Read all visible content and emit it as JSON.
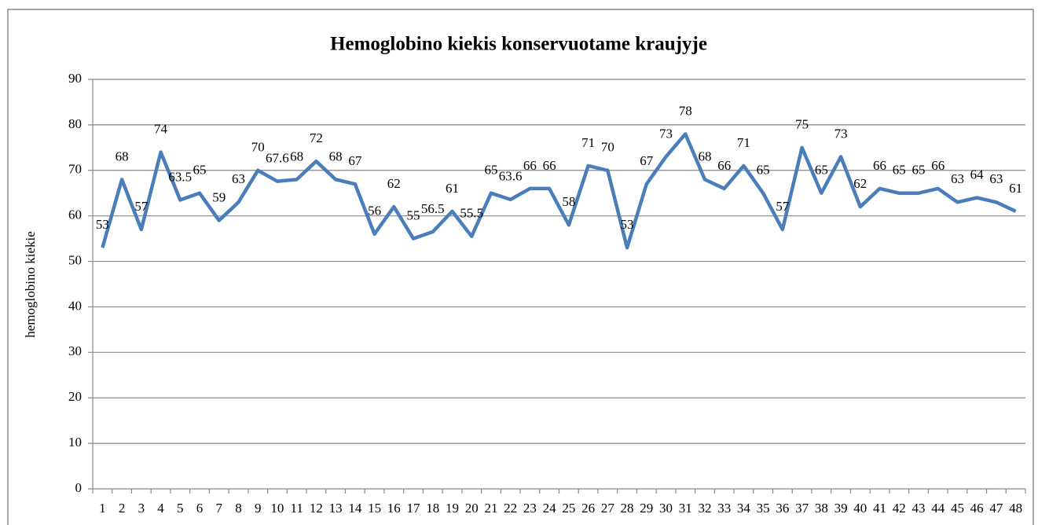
{
  "chart_data": {
    "type": "line",
    "title": "Hemoglobino kiekis konservuotame kraujyje",
    "y_label": "hemoglobino kiekie",
    "categories": [
      "1",
      "2",
      "3",
      "4",
      "5",
      "6",
      "7",
      "8",
      "9",
      "10",
      "11",
      "12",
      "13",
      "14",
      "15",
      "16",
      "17",
      "18",
      "19",
      "20",
      "21",
      "22",
      "23",
      "24",
      "25",
      "26",
      "27",
      "28",
      "29",
      "30",
      "31",
      "32",
      "33",
      "34",
      "35",
      "36",
      "37",
      "38",
      "39",
      "40",
      "41",
      "42",
      "43",
      "44",
      "45",
      "46",
      "47",
      "48"
    ],
    "series": [
      {
        "name": "hemoglobino kiekie",
        "color": "#4a7ebb",
        "values": [
          53,
          68,
          57,
          74,
          63.5,
          65,
          59,
          63,
          70,
          67.6,
          68,
          72,
          68,
          67,
          56,
          62,
          55,
          56.5,
          61,
          55.5,
          65,
          63.6,
          66,
          66,
          58,
          71,
          70,
          53,
          67,
          73,
          78,
          68,
          66,
          71,
          65,
          57,
          75,
          65,
          73,
          62,
          66,
          65,
          65,
          66,
          63,
          64,
          63,
          61
        ]
      }
    ],
    "ylim": [
      0,
      90
    ],
    "yticks": [
      0,
      10,
      20,
      30,
      40,
      50,
      60,
      70,
      80,
      90
    ],
    "grid": true,
    "data_labels": true
  }
}
